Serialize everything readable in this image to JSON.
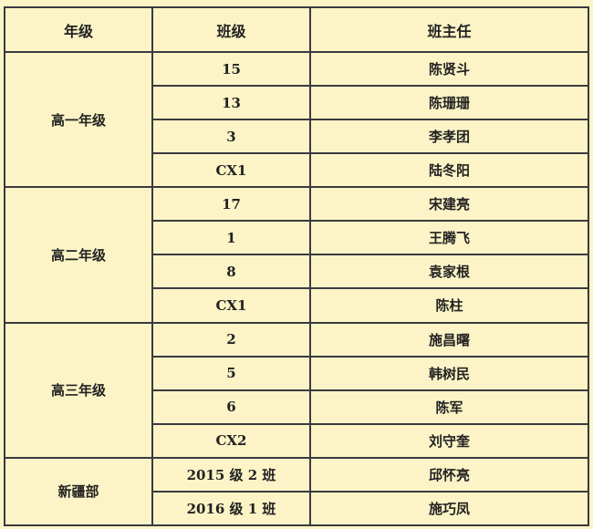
{
  "headers": [
    "年级",
    "班级",
    "班主任"
  ],
  "groups": [
    {
      "grade": "高一年级",
      "rows": [
        [
          "15",
          "陈贤斗"
        ],
        [
          "13",
          "陈珊珊"
        ],
        [
          "3",
          "李孝团"
        ],
        [
          "CX1",
          "陆冬阳"
        ]
      ]
    },
    {
      "grade": "高二年级",
      "rows": [
        [
          "17",
          "宋建亮"
        ],
        [
          "1",
          "王腾飞"
        ],
        [
          "8",
          "袁家根"
        ],
        [
          "CX1",
          "陈柱"
        ]
      ]
    },
    {
      "grade": "高三年级",
      "rows": [
        [
          "2",
          "施昌曙"
        ],
        [
          "5",
          "韩树民"
        ],
        [
          "6",
          "陈军"
        ],
        [
          "CX2",
          "刘守奎"
        ]
      ]
    },
    {
      "grade": "新疆部",
      "rows": [
        [
          "2015 级 2 班",
          "邱怀亮"
        ],
        [
          "2016 级 1 班",
          "施巧凤"
        ]
      ]
    }
  ]
}
